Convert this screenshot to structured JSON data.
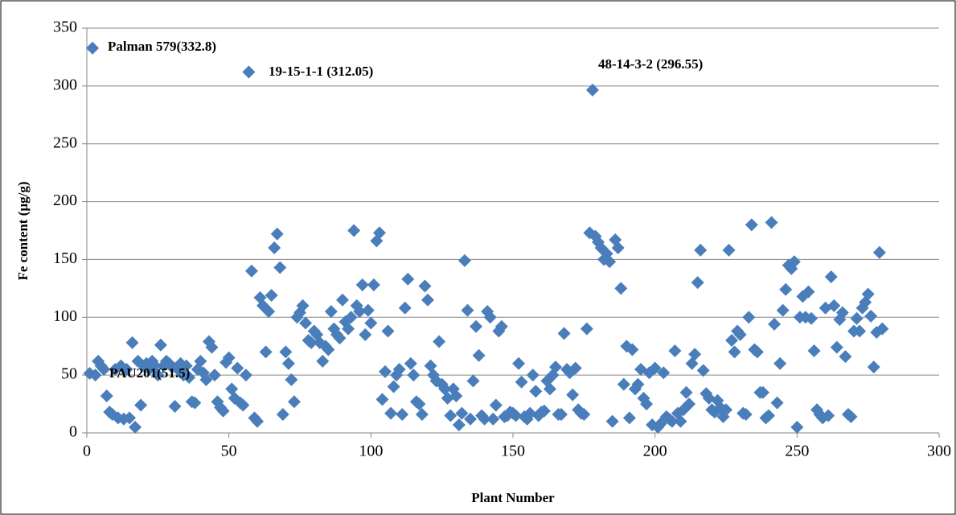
{
  "chart_data": {
    "type": "scatter",
    "x_label": "Plant Number",
    "y_label": "Fe content (µg/g)",
    "color": "#4a7ebb",
    "grid": true,
    "xlim": [
      0,
      300
    ],
    "xticks": [
      0,
      50,
      100,
      150,
      200,
      250,
      300
    ],
    "ylim": [
      0,
      350
    ],
    "yticks": [
      0,
      50,
      100,
      150,
      200,
      250,
      300,
      350
    ],
    "annotations": [
      "Palman 579(332.8)",
      "19-15-1-1 (312.05)",
      "48-14-3-2 (296.55)",
      "PAU201(51.5)"
    ],
    "x": [
      1,
      2,
      3,
      4,
      5,
      6,
      7,
      8,
      9,
      10,
      11,
      12,
      13,
      14,
      15,
      16,
      17,
      18,
      19,
      20,
      21,
      22,
      23,
      24,
      25,
      26,
      27,
      28,
      29,
      30,
      31,
      32,
      33,
      34,
      35,
      36,
      37,
      38,
      39,
      40,
      41,
      42,
      43,
      44,
      45,
      46,
      47,
      48,
      49,
      50,
      51,
      52,
      53,
      54,
      55,
      56,
      57,
      58,
      59,
      60,
      61,
      62,
      63,
      64,
      65,
      66,
      67,
      68,
      69,
      70,
      71,
      72,
      73,
      74,
      75,
      76,
      77,
      78,
      79,
      80,
      81,
      82,
      83,
      84,
      85,
      86,
      87,
      88,
      89,
      90,
      91,
      92,
      93,
      94,
      95,
      96,
      97,
      98,
      99,
      100,
      101,
      102,
      103,
      104,
      105,
      106,
      107,
      108,
      109,
      110,
      111,
      112,
      113,
      114,
      115,
      116,
      117,
      118,
      119,
      120,
      121,
      122,
      123,
      124,
      125,
      126,
      127,
      128,
      129,
      130,
      131,
      132,
      133,
      134,
      135,
      136,
      137,
      138,
      139,
      140,
      141,
      142,
      143,
      144,
      145,
      146,
      147,
      148,
      149,
      150,
      151,
      152,
      153,
      154,
      155,
      156,
      157,
      158,
      159,
      160,
      161,
      162,
      163,
      164,
      165,
      166,
      167,
      168,
      169,
      170,
      171,
      172,
      173,
      174,
      175,
      176,
      177,
      178,
      179,
      180,
      181,
      182,
      183,
      184,
      185,
      186,
      187,
      188,
      189,
      190,
      191,
      192,
      193,
      194,
      195,
      196,
      197,
      198,
      199,
      200,
      201,
      202,
      203,
      204,
      205,
      206,
      207,
      208,
      209,
      210,
      211,
      212,
      213,
      214,
      215,
      216,
      217,
      218,
      219,
      220,
      221,
      222,
      223,
      224,
      225,
      226,
      227,
      228,
      229,
      230,
      231,
      232,
      233,
      234,
      235,
      236,
      237,
      238,
      239,
      240,
      241,
      242,
      243,
      244,
      245,
      246,
      247,
      248,
      249,
      250,
      251,
      252,
      253,
      254,
      255,
      256,
      257,
      258,
      259,
      260,
      261,
      262,
      263,
      264,
      265,
      266,
      267,
      268,
      269,
      270,
      271,
      272,
      273,
      274,
      275,
      276,
      277,
      278,
      279,
      280
    ],
    "values": [
      51.5,
      332.8,
      50,
      62,
      58,
      55,
      32,
      18,
      16,
      55,
      13,
      58,
      12,
      55,
      13,
      78,
      5,
      62,
      24,
      58,
      60,
      55,
      62,
      58,
      50,
      76,
      58,
      62,
      60,
      57,
      23,
      55,
      60,
      50,
      58,
      48,
      27,
      26,
      55,
      62,
      52,
      46,
      79,
      74,
      50,
      27,
      22,
      19,
      61,
      65,
      38,
      30,
      56,
      26,
      24,
      50,
      312.05,
      140,
      13,
      10,
      117,
      110,
      70,
      105,
      119,
      160,
      172,
      143,
      16,
      70,
      60,
      46,
      27,
      100,
      104,
      110,
      95,
      80,
      78,
      88,
      85,
      78,
      62,
      75,
      72,
      105,
      90,
      85,
      82,
      115,
      96,
      90,
      100,
      175,
      110,
      105,
      128,
      85,
      106,
      95,
      128,
      166,
      173,
      29,
      53,
      88,
      17,
      40,
      50,
      55,
      16,
      108,
      133,
      60,
      50,
      27,
      25,
      16,
      127,
      115,
      58,
      50,
      45,
      79,
      42,
      38,
      30,
      15,
      38,
      32,
      7,
      17,
      149,
      106,
      12,
      45,
      92,
      67,
      15,
      12,
      105,
      100,
      12,
      24,
      88,
      92,
      14,
      15,
      18,
      17,
      15,
      60,
      44,
      14,
      12,
      17,
      50,
      36,
      15,
      18,
      19,
      45,
      38,
      50,
      57,
      16,
      16,
      86,
      55,
      52,
      33,
      56,
      20,
      17,
      16,
      90,
      173,
      296.55,
      170,
      165,
      160,
      150,
      155,
      148,
      10,
      167,
      160,
      125,
      42,
      75,
      13,
      72,
      38,
      42,
      55,
      30,
      25,
      52,
      7,
      56,
      5,
      8,
      52,
      14,
      12,
      10,
      71,
      17,
      10,
      20,
      35,
      25,
      60,
      68,
      130,
      158,
      54,
      34,
      30,
      20,
      18,
      28,
      22,
      14,
      20,
      158,
      80,
      70,
      88,
      85,
      17,
      16,
      100,
      180,
      72,
      70,
      35,
      35,
      13,
      15,
      182,
      94,
      26,
      60,
      106,
      124,
      145,
      142,
      148,
      5,
      100,
      118,
      100,
      122,
      99,
      71,
      20,
      16,
      13,
      108,
      15,
      135,
      110,
      74,
      98,
      104,
      66,
      16,
      14,
      88,
      99,
      88,
      108,
      113,
      120,
      101,
      57,
      87,
      156,
      90
    ]
  }
}
